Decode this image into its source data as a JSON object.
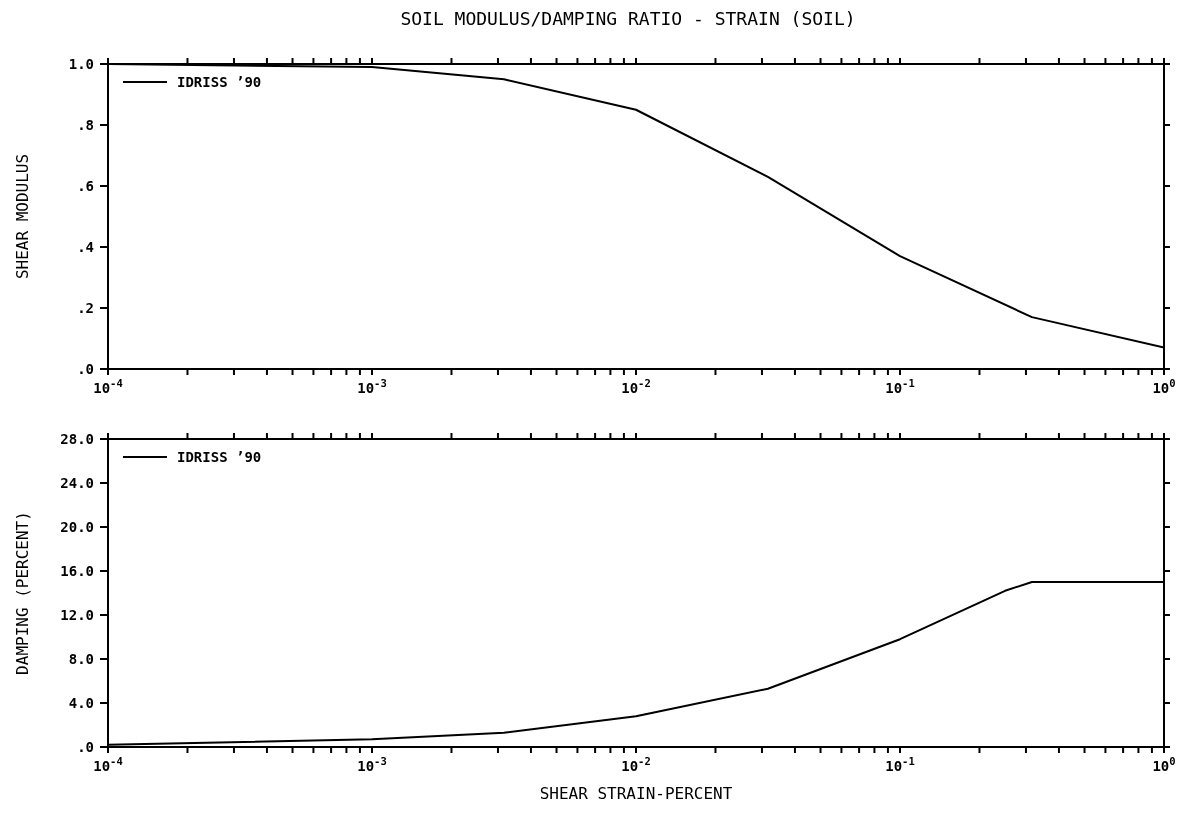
{
  "chart_data": [
    {
      "type": "line",
      "title": "SOIL MODULUS/DAMPING RATIO - STRAIN (SOIL)",
      "ylabel": "SHEAR MODULUS",
      "log": "x",
      "legend": "top left",
      "marker": "none",
      "line_style": "solid",
      "x": [
        0.0001,
        0.001,
        0.00316,
        0.01,
        0.0316,
        0.1,
        0.316,
        1
      ],
      "series": [
        {
          "name": "IDRISS ’90",
          "color": "#000000",
          "values": [
            1.0,
            0.99,
            0.95,
            0.85,
            0.63,
            0.37,
            0.17,
            0.07
          ]
        }
      ],
      "xlim": [
        0.0001,
        1
      ],
      "xticks": [
        {
          "value": 0.0001,
          "label": "10$^{-4}$"
        },
        {
          "value": 0.0002,
          "label": null
        },
        {
          "value": 0.0003,
          "label": null
        },
        {
          "value": 0.0004,
          "label": null
        },
        {
          "value": 0.0005,
          "label": null
        },
        {
          "value": 0.0006,
          "label": null
        },
        {
          "value": 0.0007,
          "label": null
        },
        {
          "value": 0.0008,
          "label": null
        },
        {
          "value": 0.0009,
          "label": null
        },
        {
          "value": 0.001,
          "label": "10$^{-3}$"
        },
        {
          "value": 0.002,
          "label": null
        },
        {
          "value": 0.003,
          "label": null
        },
        {
          "value": 0.004,
          "label": null
        },
        {
          "value": 0.005,
          "label": null
        },
        {
          "value": 0.006,
          "label": null
        },
        {
          "value": 0.007,
          "label": null
        },
        {
          "value": 0.008,
          "label": null
        },
        {
          "value": 0.009,
          "label": null
        },
        {
          "value": 0.01,
          "label": "10$^{-2}$"
        },
        {
          "value": 0.02,
          "label": null
        },
        {
          "value": 0.03,
          "label": null
        },
        {
          "value": 0.04,
          "label": null
        },
        {
          "value": 0.05,
          "label": null
        },
        {
          "value": 0.06,
          "label": null
        },
        {
          "value": 0.07,
          "label": null
        },
        {
          "value": 0.08,
          "label": null
        },
        {
          "value": 0.09,
          "label": null
        },
        {
          "value": 0.1,
          "label": "10$^{-1}$"
        },
        {
          "value": 0.2,
          "label": null
        },
        {
          "value": 0.3,
          "label": null
        },
        {
          "value": 0.4,
          "label": null
        },
        {
          "value": 0.5,
          "label": null
        },
        {
          "value": 0.6,
          "label": null
        },
        {
          "value": 0.7,
          "label": null
        },
        {
          "value": 0.8,
          "label": null
        },
        {
          "value": 0.9,
          "label": null
        },
        {
          "value": 1,
          "label": "10$^{0}$"
        }
      ],
      "ylim": [
        0,
        1
      ],
      "yticks": [
        {
          "value": 0,
          "label": ".0"
        },
        {
          "value": 0.2,
          "label": ".2"
        },
        {
          "value": 0.4,
          "label": ".4"
        },
        {
          "value": 0.6,
          "label": ".6"
        },
        {
          "value": 0.8,
          "label": ".8"
        },
        {
          "value": 1,
          "label": "1.0"
        }
      ]
    },
    {
      "type": "line",
      "xlabel": "SHEAR STRAIN-PERCENT",
      "ylabel": "DAMPING (PERCENT)",
      "log": "x",
      "legend": "top left",
      "marker": "none",
      "line_style": "solid",
      "x": [
        0.0001,
        0.001,
        0.00316,
        0.01,
        0.0316,
        0.1,
        0.25,
        0.316,
        1
      ],
      "series": [
        {
          "name": "IDRISS ’90",
          "color": "#000000",
          "values": [
            0.2,
            0.7,
            1.3,
            2.8,
            5.3,
            9.8,
            14.2,
            15.0,
            15.0
          ]
        }
      ],
      "xlim": [
        0.0001,
        1
      ],
      "xticks": [
        {
          "value": 0.0001,
          "label": "10$^{-4}$"
        },
        {
          "value": 0.0002,
          "label": null
        },
        {
          "value": 0.0003,
          "label": null
        },
        {
          "value": 0.0004,
          "label": null
        },
        {
          "value": 0.0005,
          "label": null
        },
        {
          "value": 0.0006,
          "label": null
        },
        {
          "value": 0.0007,
          "label": null
        },
        {
          "value": 0.0008,
          "label": null
        },
        {
          "value": 0.0009,
          "label": null
        },
        {
          "value": 0.001,
          "label": "10$^{-3}$"
        },
        {
          "value": 0.002,
          "label": null
        },
        {
          "value": 0.003,
          "label": null
        },
        {
          "value": 0.004,
          "label": null
        },
        {
          "value": 0.005,
          "label": null
        },
        {
          "value": 0.006,
          "label": null
        },
        {
          "value": 0.007,
          "label": null
        },
        {
          "value": 0.008,
          "label": null
        },
        {
          "value": 0.009,
          "label": null
        },
        {
          "value": 0.01,
          "label": "10$^{-2}$"
        },
        {
          "value": 0.02,
          "label": null
        },
        {
          "value": 0.03,
          "label": null
        },
        {
          "value": 0.04,
          "label": null
        },
        {
          "value": 0.05,
          "label": null
        },
        {
          "value": 0.06,
          "label": null
        },
        {
          "value": 0.07,
          "label": null
        },
        {
          "value": 0.08,
          "label": null
        },
        {
          "value": 0.09,
          "label": null
        },
        {
          "value": 0.1,
          "label": "10$^{-1}$"
        },
        {
          "value": 0.2,
          "label": null
        },
        {
          "value": 0.3,
          "label": null
        },
        {
          "value": 0.4,
          "label": null
        },
        {
          "value": 0.5,
          "label": null
        },
        {
          "value": 0.6,
          "label": null
        },
        {
          "value": 0.7,
          "label": null
        },
        {
          "value": 0.8,
          "label": null
        },
        {
          "value": 0.9,
          "label": null
        },
        {
          "value": 1,
          "label": "10$^{0}$"
        }
      ],
      "ylim": [
        0,
        28
      ],
      "yticks": [
        {
          "value": 0,
          "label": ".0"
        },
        {
          "value": 4,
          "label": "4.0"
        },
        {
          "value": 8,
          "label": "8.0"
        },
        {
          "value": 12,
          "label": "12.0"
        },
        {
          "value": 16,
          "label": "16.0"
        },
        {
          "value": 20,
          "label": "20.0"
        },
        {
          "value": 24,
          "label": "24.0"
        },
        {
          "value": 28,
          "label": "28.0"
        }
      ]
    }
  ]
}
